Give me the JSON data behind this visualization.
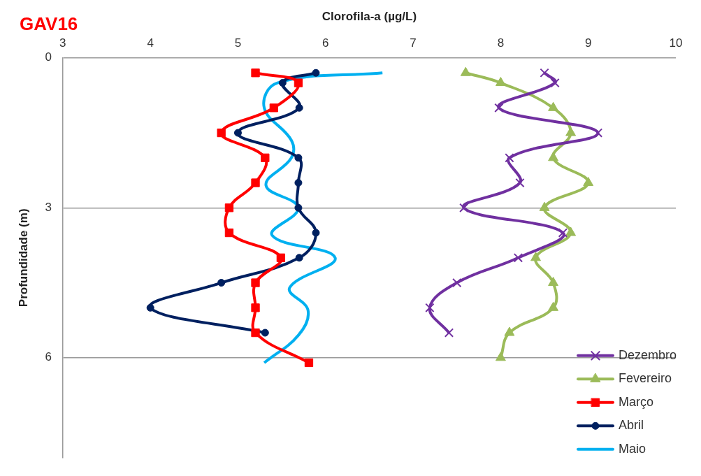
{
  "chart_data": {
    "type": "line",
    "title": "GAV16",
    "xlabel": "Clorofila-a (µg/L)",
    "ylabel": "Profundidade (m)",
    "xlim": [
      3,
      10
    ],
    "xticks": [
      3,
      4,
      5,
      6,
      7,
      8,
      9,
      10
    ],
    "ylim": [
      8,
      0
    ],
    "yticks": [
      0,
      3,
      6
    ],
    "grid": "y",
    "legend": "bottom right",
    "series": [
      {
        "name": "Dezembro",
        "color": "#7030a0",
        "marker": "cross",
        "x": [
          8.5,
          8.62,
          7.98,
          9.11,
          8.1,
          8.22,
          7.58,
          8.71,
          8.2,
          7.5,
          7.19,
          7.41
        ],
        "values": [
          0.3,
          0.5,
          1.0,
          1.5,
          2.0,
          2.5,
          3.0,
          3.5,
          4.0,
          4.5,
          5.0,
          5.5
        ]
      },
      {
        "name": "Fevereiro",
        "color": "#9bbb59",
        "marker": "triangle",
        "x": [
          7.6,
          8.0,
          8.6,
          8.8,
          8.6,
          9.0,
          8.5,
          8.8,
          8.4,
          8.6,
          8.6,
          8.1,
          8.0
        ],
        "values": [
          0.3,
          0.5,
          1.0,
          1.5,
          2.0,
          2.5,
          3.0,
          3.5,
          4.0,
          4.5,
          5.0,
          5.5,
          6.0
        ]
      },
      {
        "name": "Março",
        "color": "#ff0000",
        "marker": "square",
        "x": [
          5.2,
          5.69,
          5.41,
          4.81,
          5.31,
          5.2,
          4.9,
          4.9,
          5.49,
          5.2,
          5.2,
          5.2,
          5.81
        ],
        "values": [
          0.3,
          0.5,
          1.0,
          1.5,
          2.0,
          2.5,
          3.0,
          3.5,
          4.0,
          4.5,
          5.0,
          5.5,
          6.1
        ]
      },
      {
        "name": "Abril",
        "color": "#002060",
        "marker": "circle",
        "x": [
          5.89,
          5.51,
          5.7,
          5.0,
          5.69,
          5.69,
          5.69,
          5.89,
          5.7,
          4.81,
          4.0,
          5.31
        ],
        "values": [
          0.3,
          0.5,
          1.0,
          1.5,
          2.0,
          2.5,
          3.0,
          3.5,
          4.0,
          4.5,
          5.0,
          5.5
        ]
      },
      {
        "name": "Maio",
        "color": "#00b0f0",
        "marker": "none",
        "x": [
          6.65,
          5.45,
          5.3,
          5.61,
          5.61,
          5.32,
          5.69,
          5.39,
          6.11,
          5.59,
          5.8,
          5.69,
          5.3
        ],
        "values": [
          0.3,
          0.5,
          1.0,
          1.65,
          2.0,
          2.55,
          3.0,
          3.55,
          4.0,
          4.6,
          5.05,
          5.55,
          6.1
        ]
      }
    ]
  }
}
